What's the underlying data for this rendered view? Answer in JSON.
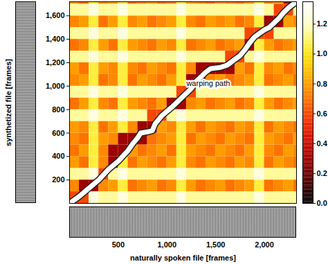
{
  "chart_data": {
    "type": "heatmap",
    "x_label": "naturally spoken file [frames]",
    "y_label": "synthetized file [frames]",
    "xlim": [
      0,
      2330
    ],
    "ylim": [
      0,
      1720
    ],
    "xticks": [
      500,
      1000,
      1500,
      2000
    ],
    "yticks": [
      200,
      400,
      600,
      800,
      1000,
      1200,
      1400,
      1600
    ],
    "cells": {
      "x_edges": [
        0,
        100,
        200,
        300,
        400,
        500,
        600,
        700,
        800,
        900,
        1000,
        1100,
        1200,
        1300,
        1400,
        1500,
        1600,
        1700,
        1800,
        1900,
        2000,
        2100,
        2200,
        2300,
        2330
      ],
      "y_edges": [
        0,
        100,
        200,
        300,
        400,
        500,
        600,
        700,
        800,
        900,
        1000,
        1100,
        1200,
        1300,
        1400,
        1500,
        1600,
        1700,
        1720
      ],
      "values": [
        [
          0.6,
          0.6,
          1.25,
          1.15,
          1.15,
          1.25,
          1.15,
          1.15,
          1.15,
          1.15,
          1.15,
          1.25,
          1.15,
          1.15,
          1.15,
          1.15,
          1.15,
          1.15,
          1.15,
          1.25,
          1.15,
          1.15,
          1.15,
          1.15
        ],
        [
          0.75,
          0.3,
          0.3,
          0.75,
          0.8,
          1.05,
          0.7,
          0.75,
          0.8,
          0.7,
          0.75,
          1.05,
          0.8,
          0.7,
          0.75,
          0.8,
          0.7,
          0.75,
          0.8,
          1.05,
          0.7,
          0.75,
          0.8,
          0.7
        ],
        [
          1.15,
          1.15,
          1.25,
          0.6,
          1.15,
          1.25,
          1.15,
          1.15,
          1.15,
          1.15,
          1.15,
          1.25,
          1.15,
          1.15,
          1.15,
          1.15,
          1.15,
          1.15,
          1.15,
          1.25,
          1.15,
          1.15,
          1.15,
          1.15
        ],
        [
          0.8,
          0.7,
          1.05,
          0.75,
          0.3,
          1.05,
          0.7,
          0.8,
          0.75,
          0.7,
          0.8,
          1.05,
          0.75,
          0.7,
          0.8,
          0.75,
          0.7,
          0.8,
          0.75,
          1.05,
          0.7,
          0.8,
          0.75,
          0.7
        ],
        [
          0.7,
          0.8,
          1.05,
          0.75,
          0.3,
          0.3,
          0.8,
          0.7,
          0.75,
          0.8,
          0.7,
          1.05,
          0.8,
          0.75,
          0.7,
          0.8,
          0.75,
          0.7,
          0.8,
          1.05,
          0.75,
          0.7,
          0.8,
          0.75
        ],
        [
          0.75,
          0.7,
          1.05,
          0.8,
          0.75,
          0.3,
          0.3,
          0.3,
          0.7,
          0.75,
          0.8,
          1.05,
          0.7,
          0.8,
          0.75,
          0.7,
          0.8,
          0.75,
          0.7,
          1.05,
          0.8,
          0.75,
          0.7,
          0.8
        ],
        [
          0.8,
          0.75,
          1.05,
          0.7,
          0.8,
          1.05,
          0.75,
          0.3,
          0.3,
          0.8,
          0.75,
          1.05,
          0.8,
          0.7,
          0.8,
          0.75,
          0.7,
          0.8,
          0.75,
          1.05,
          0.7,
          0.8,
          0.75,
          0.7
        ],
        [
          1.15,
          1.15,
          1.25,
          1.15,
          1.15,
          1.25,
          1.15,
          1.15,
          0.6,
          0.6,
          1.15,
          1.25,
          1.15,
          1.15,
          1.15,
          1.15,
          1.15,
          1.15,
          1.15,
          1.25,
          1.15,
          1.15,
          1.15,
          1.15
        ],
        [
          0.7,
          0.8,
          1.05,
          0.75,
          0.7,
          1.05,
          0.8,
          0.75,
          0.7,
          0.8,
          0.3,
          0.3,
          0.75,
          0.8,
          0.7,
          0.75,
          0.8,
          0.7,
          0.75,
          1.05,
          0.8,
          0.7,
          0.75,
          0.8
        ],
        [
          1.15,
          1.15,
          1.25,
          1.15,
          1.15,
          1.25,
          1.15,
          1.15,
          1.15,
          1.15,
          1.15,
          0.6,
          0.6,
          1.15,
          1.15,
          1.15,
          1.15,
          1.15,
          1.15,
          1.25,
          1.15,
          1.15,
          1.15,
          1.15
        ],
        [
          0.75,
          0.8,
          1.05,
          0.7,
          0.75,
          1.05,
          0.7,
          0.8,
          0.75,
          0.7,
          0.8,
          1.05,
          0.3,
          0.3,
          0.75,
          0.8,
          0.7,
          0.75,
          0.8,
          1.05,
          0.7,
          0.75,
          0.8,
          0.7
        ],
        [
          0.8,
          0.7,
          1.05,
          0.8,
          0.75,
          1.05,
          0.75,
          0.7,
          0.8,
          0.75,
          0.7,
          1.05,
          0.75,
          0.3,
          0.3,
          0.3,
          0.3,
          0.8,
          0.7,
          1.05,
          0.75,
          0.8,
          0.7,
          0.75
        ],
        [
          1.15,
          1.15,
          1.25,
          1.15,
          1.15,
          1.25,
          1.15,
          1.15,
          1.15,
          1.15,
          1.15,
          1.25,
          1.15,
          1.15,
          1.15,
          1.15,
          0.6,
          0.6,
          1.15,
          1.25,
          1.15,
          1.15,
          1.15,
          1.15
        ],
        [
          0.7,
          0.75,
          1.05,
          0.8,
          0.7,
          1.05,
          0.8,
          0.75,
          0.7,
          0.8,
          0.75,
          1.05,
          0.7,
          0.75,
          0.8,
          0.7,
          0.75,
          0.8,
          0.3,
          1.05,
          0.8,
          0.7,
          0.75,
          0.8
        ],
        [
          1.15,
          1.15,
          1.25,
          1.15,
          1.15,
          1.25,
          1.15,
          1.15,
          1.15,
          1.15,
          1.15,
          1.25,
          1.15,
          1.15,
          1.15,
          1.15,
          1.15,
          1.15,
          0.6,
          0.6,
          0.6,
          1.15,
          1.15,
          1.15
        ],
        [
          0.75,
          0.8,
          1.05,
          0.7,
          0.8,
          1.05,
          0.75,
          0.8,
          0.7,
          0.75,
          0.8,
          1.05,
          0.75,
          0.7,
          0.8,
          0.75,
          0.8,
          0.7,
          0.75,
          1.05,
          0.3,
          0.3,
          0.8,
          0.75
        ],
        [
          1.15,
          1.15,
          1.25,
          1.15,
          1.15,
          1.25,
          1.15,
          1.15,
          1.15,
          1.15,
          1.15,
          1.25,
          1.15,
          1.15,
          1.15,
          1.15,
          1.15,
          1.15,
          1.15,
          1.25,
          1.15,
          0.6,
          0.6,
          1.15
        ],
        [
          0.8,
          0.7,
          1.05,
          0.75,
          0.8,
          1.05,
          0.7,
          0.75,
          0.8,
          0.7,
          0.75,
          1.05,
          0.8,
          0.75,
          0.7,
          0.8,
          0.75,
          0.7,
          0.8,
          1.05,
          0.75,
          0.8,
          0.3,
          0.3
        ]
      ]
    },
    "colorbar": {
      "range": [
        0,
        1.35
      ],
      "ticks": [
        0,
        0.2,
        0.4,
        0.6,
        0.8,
        1,
        1.2
      ]
    },
    "warping_path": {
      "color": "#ffffff",
      "x": [
        0,
        100,
        200,
        300,
        400,
        500,
        600,
        650,
        700,
        730,
        800,
        850,
        880,
        950,
        1050,
        1150,
        1250,
        1300,
        1350,
        1400,
        1450,
        1550,
        1620,
        1700,
        1750,
        1800,
        1850,
        1900,
        2000,
        2050,
        2100,
        2150,
        2200,
        2250,
        2330
      ],
      "y": [
        0,
        60,
        130,
        200,
        290,
        360,
        450,
        510,
        560,
        600,
        610,
        620,
        680,
        750,
        820,
        900,
        980,
        1040,
        1080,
        1120,
        1150,
        1160,
        1180,
        1230,
        1260,
        1310,
        1370,
        1420,
        1480,
        1500,
        1540,
        1580,
        1630,
        1670,
        1720
      ]
    },
    "annotations": [
      {
        "text": "warping path",
        "x": 1200,
        "y": 1020
      }
    ]
  }
}
